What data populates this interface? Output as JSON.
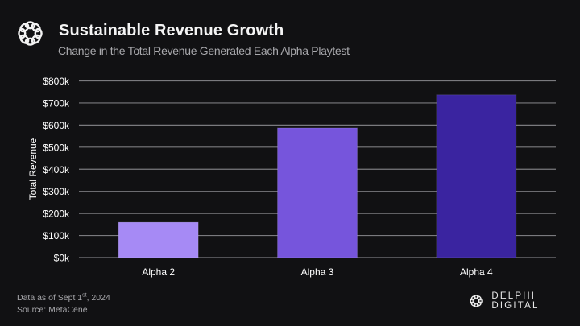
{
  "header": {
    "title": "Sustainable Revenue Growth",
    "subtitle": "Change in the Total Revenue Generated Each Alpha Playtest",
    "logo_icon": "delphi-knot-icon"
  },
  "footer": {
    "data_as_of_prefix": "Data as of Sept 1",
    "data_as_of_sup": "st",
    "data_as_of_suffix": ", 2024",
    "source": "Source: MetaCene"
  },
  "brand": {
    "name": "DELPHI DIGITAL",
    "logo_icon": "delphi-knot-icon"
  },
  "colors": {
    "background": "#111113",
    "gridline": "#7a7a7e",
    "text": "#ffffff",
    "bar_colors": [
      "#a68af5",
      "#7655dc",
      "#3a24a0"
    ]
  },
  "chart_data": {
    "type": "bar",
    "title": "Sustainable Revenue Growth",
    "subtitle": "Change in the Total Revenue Generated Each Alpha Playtest",
    "xlabel": "",
    "ylabel": "Total Revenue",
    "categories": [
      "Alpha 2",
      "Alpha 3",
      "Alpha 4"
    ],
    "values": [
      160000,
      587000,
      737000
    ],
    "ylim": [
      0,
      800000
    ],
    "yticks": [
      0,
      100000,
      200000,
      300000,
      400000,
      500000,
      600000,
      700000,
      800000
    ],
    "ytick_labels": [
      "$0k",
      "$100k",
      "$200k",
      "$300k",
      "$400k",
      "$500k",
      "$600k",
      "$700k",
      "$800k"
    ],
    "grid": true,
    "legend": "none"
  }
}
